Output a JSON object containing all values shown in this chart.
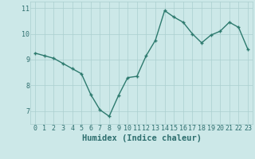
{
  "x": [
    0,
    1,
    2,
    3,
    4,
    5,
    6,
    7,
    8,
    9,
    10,
    11,
    12,
    13,
    14,
    15,
    16,
    17,
    18,
    19,
    20,
    21,
    22,
    23
  ],
  "y": [
    9.25,
    9.15,
    9.05,
    8.85,
    8.65,
    8.45,
    7.65,
    7.05,
    6.8,
    7.6,
    8.3,
    8.35,
    9.15,
    9.75,
    10.9,
    10.65,
    10.45,
    10.0,
    9.65,
    9.95,
    10.1,
    10.45,
    10.25,
    9.4
  ],
  "line_color": "#2d7a6e",
  "marker": "+",
  "bg_color": "#cce8e8",
  "grid_color": "#aacfcf",
  "xlabel": "Humidex (Indice chaleur)",
  "ylim": [
    6.5,
    11.25
  ],
  "yticks": [
    7,
    8,
    9,
    10,
    11
  ],
  "xticks": [
    0,
    1,
    2,
    3,
    4,
    5,
    6,
    7,
    8,
    9,
    10,
    11,
    12,
    13,
    14,
    15,
    16,
    17,
    18,
    19,
    20,
    21,
    22,
    23
  ],
  "tick_color": "#2d6e6e",
  "xlabel_fontsize": 7.5,
  "tick_fontsize": 6.0,
  "linewidth": 1.0,
  "marker_size": 3.5
}
